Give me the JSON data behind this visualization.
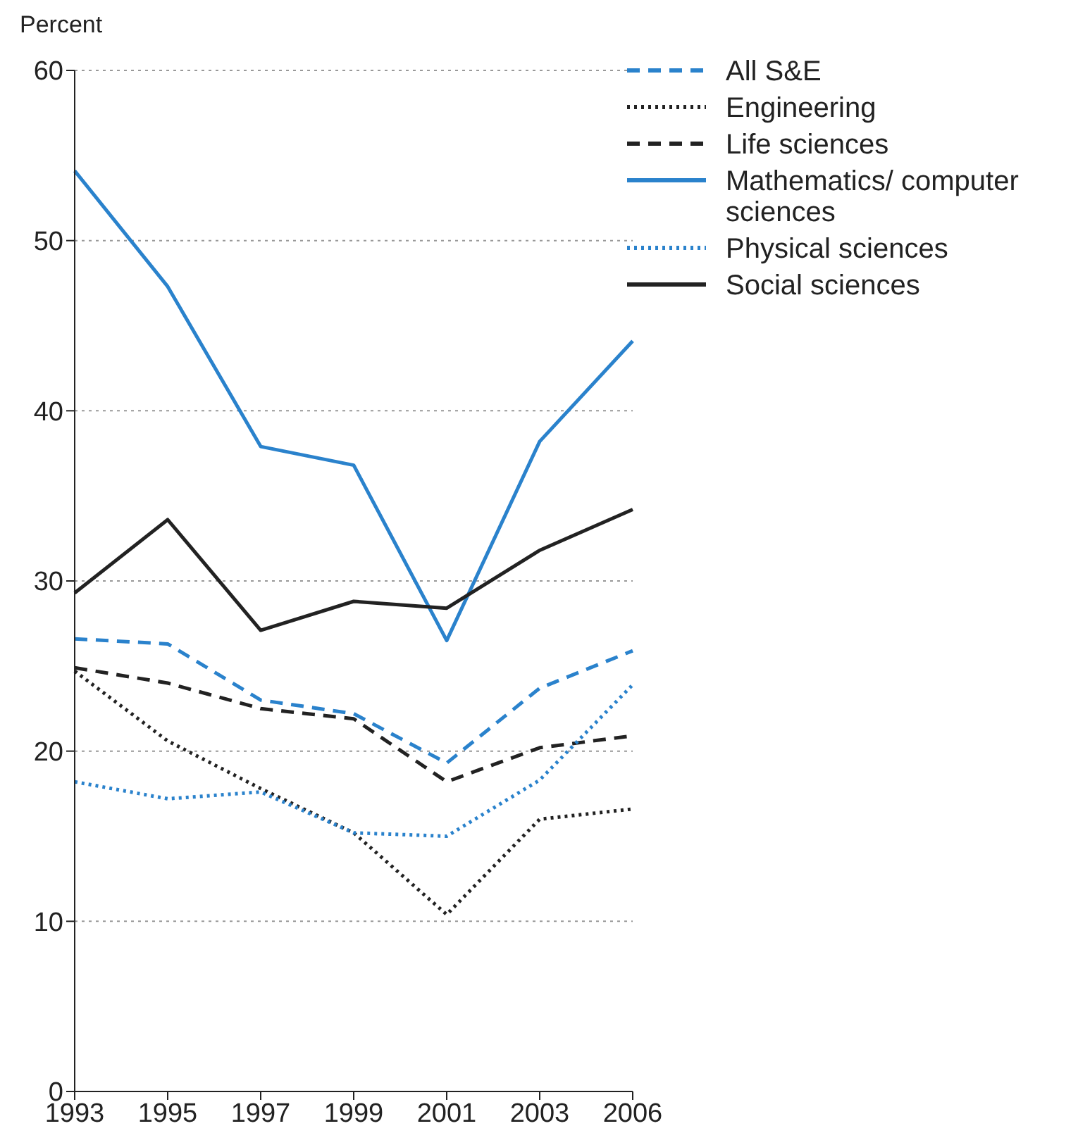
{
  "chart_data": {
    "type": "line",
    "ylabel": "Percent",
    "categories": [
      "1993",
      "1995",
      "1997",
      "1999",
      "2001",
      "2003",
      "2006"
    ],
    "ylim": [
      0,
      60
    ],
    "yticks": [
      0,
      10,
      20,
      30,
      40,
      50,
      60
    ],
    "grid": "y",
    "legend": "top right",
    "marker": "none",
    "series": [
      {
        "name": "All S&E",
        "color": "#2a82cc",
        "line_style": "dashed",
        "values": [
          26.6,
          26.3,
          23.0,
          22.2,
          19.3,
          23.7,
          25.9
        ]
      },
      {
        "name": "Engineering",
        "color": "#222222",
        "line_style": "dotted",
        "values": [
          24.7,
          20.6,
          17.8,
          15.2,
          10.4,
          16.0,
          16.6
        ]
      },
      {
        "name": "Life sciences",
        "color": "#222222",
        "line_style": "dashed",
        "values": [
          24.9,
          24.0,
          22.5,
          21.9,
          18.2,
          20.2,
          20.9
        ]
      },
      {
        "name": "Mathematics/ computer sciences",
        "color": "#2a82cc",
        "line_style": "solid",
        "values": [
          54.1,
          47.3,
          37.9,
          36.8,
          26.5,
          38.2,
          44.1
        ]
      },
      {
        "name": "Physical sciences",
        "color": "#2a82cc",
        "line_style": "dotted",
        "values": [
          18.2,
          17.2,
          17.6,
          15.2,
          15.0,
          18.3,
          23.9
        ]
      },
      {
        "name": "Social sciences",
        "color": "#222222",
        "line_style": "solid",
        "values": [
          29.3,
          33.6,
          27.1,
          28.8,
          28.4,
          31.8,
          34.2
        ]
      }
    ]
  }
}
